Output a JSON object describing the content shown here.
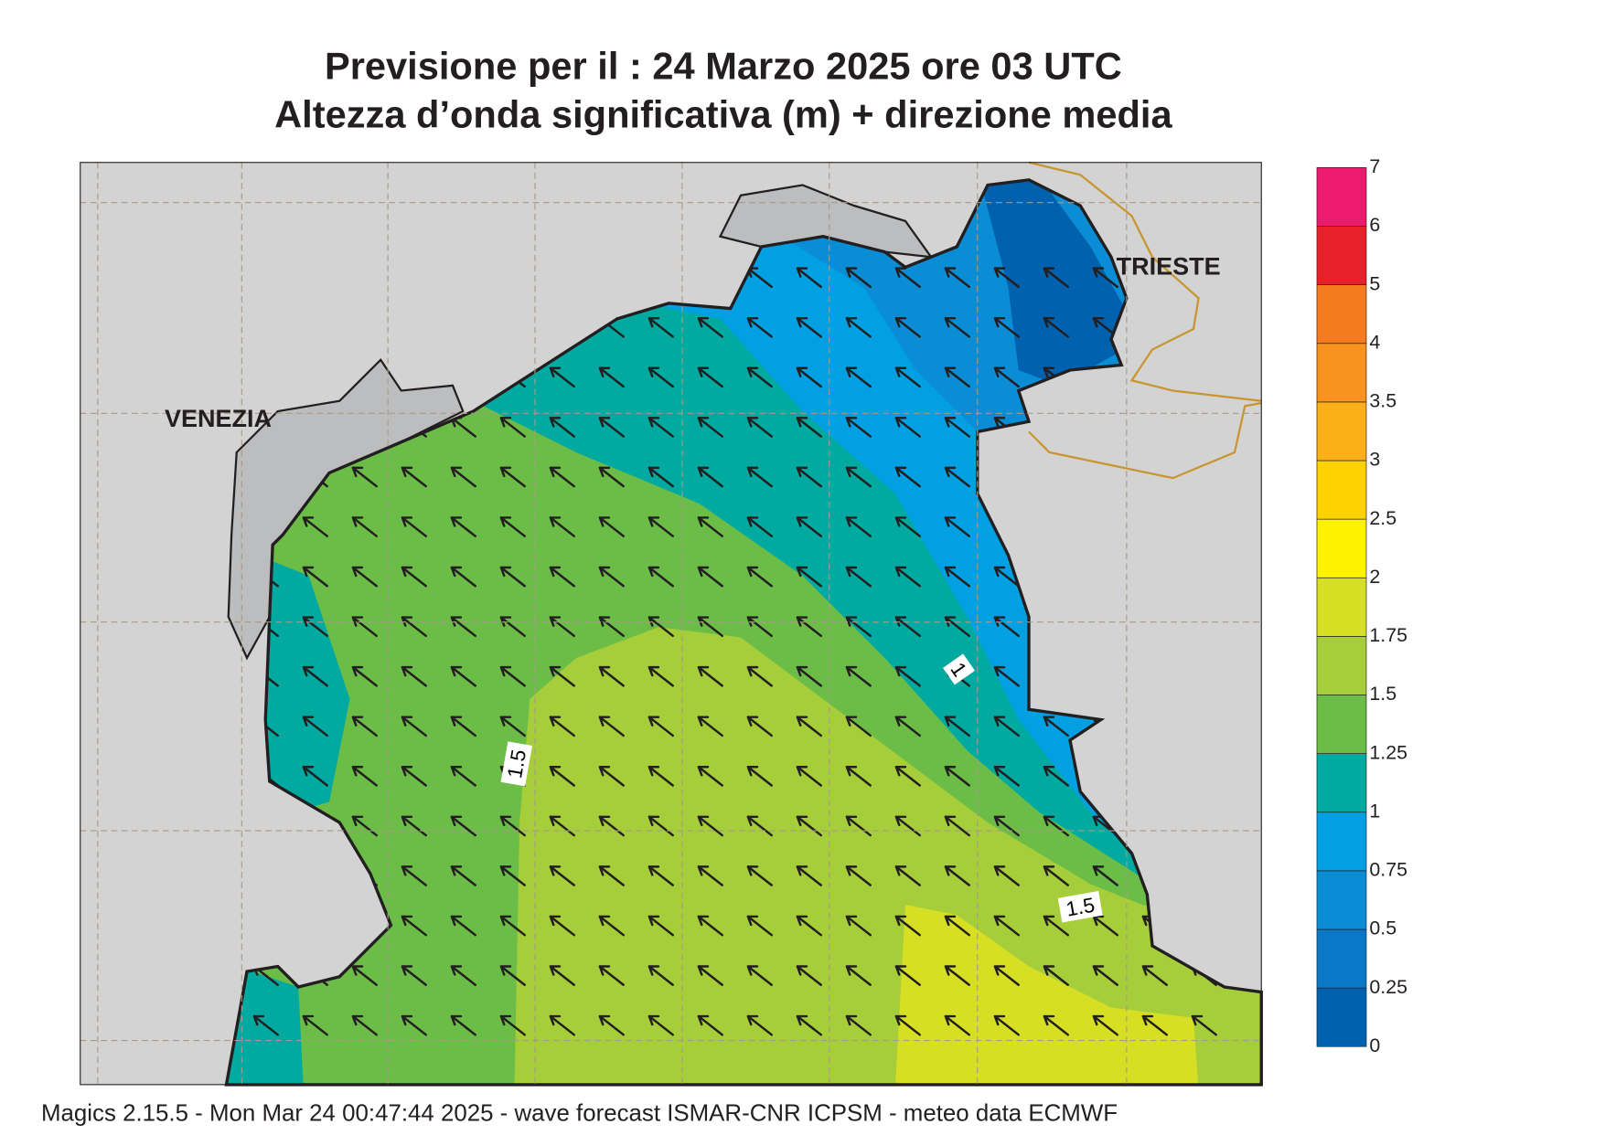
{
  "header": {
    "title_line1": "Previsione per il  :  24   Marzo   2025   ore 03 UTC",
    "title_line2": "Altezza d’onda significativa (m) + direzione media"
  },
  "map": {
    "cities": [
      "VENEZIA",
      "TRIESTE"
    ],
    "contour_labels": [
      "1",
      "1.5",
      "1.5"
    ]
  },
  "colorbar": {
    "levels": [
      0,
      0.25,
      0.5,
      0.75,
      1,
      1.25,
      1.5,
      1.75,
      2,
      2.5,
      3,
      3.5,
      4,
      5,
      6,
      7
    ],
    "colors": [
      "#0061ae",
      "#0a78c6",
      "#0b8dd6",
      "#00a0e2",
      "#00aaa0",
      "#6bbd48",
      "#a6cd3a",
      "#d7df24",
      "#fff200",
      "#fdd200",
      "#fbb017",
      "#f7931e",
      "#f47b20",
      "#e8202a",
      "#ee1a6e"
    ]
  },
  "footer": "Magics 2.15.5 - Mon Mar 24 00:47:44 2025 - wave forecast  ISMAR-CNR  ICPSM - meteo data   ECMWF"
}
